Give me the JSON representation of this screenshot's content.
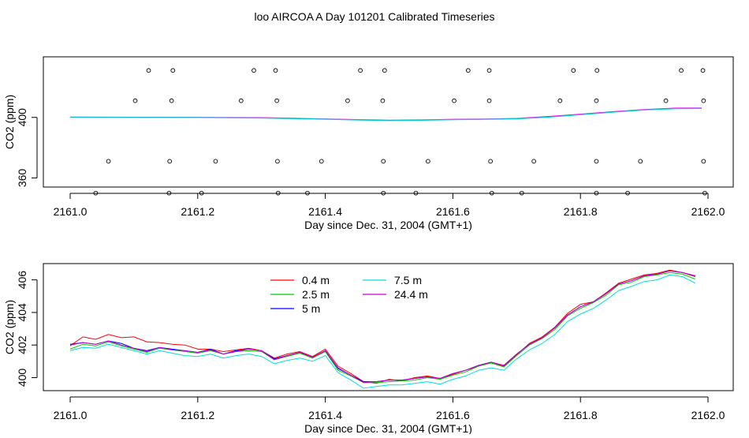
{
  "chart_data": [
    {
      "type": "scatter",
      "title": "loo AIRCOA A  Day 101201  Calibrated Timeseries",
      "xlabel": "Day since Dec. 31, 2004 (GMT+1)",
      "ylabel": "CO2 (ppm)",
      "xlim": [
        2161.0,
        2162.0
      ],
      "ylim": [
        354,
        440
      ],
      "x_ticks": [
        2161.0,
        2161.2,
        2161.4,
        2161.6,
        2161.8,
        2162.0
      ],
      "x_tick_labels": [
        "2161.0",
        "2161.2",
        "2161.4",
        "2161.6",
        "2161.8",
        "2162.0"
      ],
      "y_ticks": [
        360,
        400
      ],
      "y_tick_labels": [
        "360",
        "400"
      ],
      "grid": false,
      "points": [
        [
          2161.123,
          431
        ],
        [
          2161.161,
          431
        ],
        [
          2161.288,
          431
        ],
        [
          2161.322,
          431
        ],
        [
          2161.455,
          431
        ],
        [
          2161.493,
          431
        ],
        [
          2161.624,
          431
        ],
        [
          2161.657,
          431
        ],
        [
          2161.789,
          431
        ],
        [
          2161.826,
          431
        ],
        [
          2161.958,
          431
        ],
        [
          2161.992,
          431
        ],
        [
          2161.102,
          411
        ],
        [
          2161.159,
          411
        ],
        [
          2161.268,
          411
        ],
        [
          2161.324,
          411
        ],
        [
          2161.435,
          411
        ],
        [
          2161.49,
          411
        ],
        [
          2161.602,
          411
        ],
        [
          2161.657,
          411
        ],
        [
          2161.768,
          411
        ],
        [
          2161.825,
          411
        ],
        [
          2161.934,
          411
        ],
        [
          2161.993,
          411
        ],
        [
          2161.06,
          371
        ],
        [
          2161.156,
          371
        ],
        [
          2161.228,
          371
        ],
        [
          2161.325,
          371
        ],
        [
          2161.394,
          371
        ],
        [
          2161.491,
          371
        ],
        [
          2161.561,
          371
        ],
        [
          2161.659,
          371
        ],
        [
          2161.727,
          371
        ],
        [
          2161.825,
          371
        ],
        [
          2161.894,
          371
        ],
        [
          2161.993,
          371
        ],
        [
          2161.04,
          350
        ],
        [
          2161.155,
          350
        ],
        [
          2161.206,
          350
        ],
        [
          2161.326,
          350
        ],
        [
          2161.372,
          350
        ],
        [
          2161.491,
          350
        ],
        [
          2161.542,
          350
        ],
        [
          2161.661,
          350
        ],
        [
          2161.708,
          350
        ],
        [
          2161.825,
          350
        ],
        [
          2161.874,
          350
        ],
        [
          2161.995,
          350
        ]
      ],
      "series": [
        {
          "name": "",
          "color": "#FF00FF",
          "x": [
            2161.0,
            2161.1,
            2161.2,
            2161.3,
            2161.35,
            2161.4,
            2161.45,
            2161.5,
            2161.55,
            2161.6,
            2161.65,
            2161.7,
            2161.75,
            2161.8,
            2161.85,
            2161.9,
            2161.95,
            2161.99
          ],
          "y": [
            400.2,
            400.1,
            400.0,
            399.8,
            399.4,
            399.0,
            398.5,
            398.1,
            398.3,
            398.7,
            398.9,
            399.3,
            400.6,
            402.1,
            403.7,
            405.2,
            406.1,
            406.2
          ]
        },
        {
          "name": "",
          "color": "#00CCCC",
          "x": [
            2161.0,
            2161.1,
            2161.2,
            2161.3,
            2161.35,
            2161.4,
            2161.45,
            2161.5,
            2161.55,
            2161.6,
            2161.65,
            2161.7,
            2161.75,
            2161.8,
            2161.85,
            2161.9,
            2161.95,
            2161.99
          ],
          "y": [
            400.0,
            400.0,
            399.9,
            399.6,
            399.2,
            398.8,
            398.3,
            397.9,
            398.1,
            398.5,
            398.7,
            399.1,
            400.2,
            401.8,
            403.4,
            404.9,
            405.8,
            405.9
          ]
        }
      ]
    },
    {
      "type": "line",
      "xlabel": "Day since Dec. 31, 2004 (GMT+1)",
      "ylabel": "CO2 (ppm)",
      "xlim": [
        2161.0,
        2162.0
      ],
      "ylim": [
        399.2,
        407.0
      ],
      "x_ticks": [
        2161.0,
        2161.2,
        2161.4,
        2161.6,
        2161.8,
        2162.0
      ],
      "x_tick_labels": [
        "2161.0",
        "2161.2",
        "2161.4",
        "2161.6",
        "2161.8",
        "2162.0"
      ],
      "y_ticks": [
        400,
        402,
        404,
        406
      ],
      "y_tick_labels": [
        "400",
        "402",
        "404",
        "406"
      ],
      "grid": false,
      "legend": "top-center",
      "base": {
        "x": [
          2161.0,
          2161.02,
          2161.04,
          2161.06,
          2161.08,
          2161.1,
          2161.12,
          2161.14,
          2161.16,
          2161.18,
          2161.2,
          2161.22,
          2161.24,
          2161.26,
          2161.28,
          2161.3,
          2161.32,
          2161.34,
          2161.36,
          2161.38,
          2161.4,
          2161.42,
          2161.44,
          2161.46,
          2161.48,
          2161.5,
          2161.52,
          2161.54,
          2161.56,
          2161.58,
          2161.6,
          2161.62,
          2161.64,
          2161.66,
          2161.68,
          2161.7,
          2161.72,
          2161.74,
          2161.76,
          2161.78,
          2161.8,
          2161.82,
          2161.84,
          2161.86,
          2161.88,
          2161.9,
          2161.92,
          2161.94,
          2161.96,
          2161.98
        ],
        "y": [
          401.9,
          402.1,
          402.0,
          402.2,
          402.0,
          401.8,
          401.6,
          401.8,
          401.7,
          401.6,
          401.5,
          401.7,
          401.4,
          401.6,
          401.7,
          401.6,
          401.1,
          401.3,
          401.5,
          401.2,
          401.6,
          400.5,
          400.1,
          399.7,
          399.7,
          399.8,
          399.8,
          399.9,
          400.0,
          399.9,
          400.2,
          400.4,
          400.7,
          400.9,
          400.7,
          401.4,
          402.0,
          402.4,
          403.0,
          403.8,
          404.3,
          404.6,
          405.1,
          405.7,
          405.9,
          406.2,
          406.3,
          406.5,
          406.4,
          406.2
        ]
      },
      "series": [
        {
          "name": "0.4 m",
          "color": "#FF0000",
          "offsets": [
            0.05,
            0.4,
            0.35,
            0.45,
            0.45,
            0.7,
            0.6,
            0.35,
            0.35,
            0.4,
            0.25,
            0.05,
            0.2,
            0.1,
            0.1,
            0.05,
            0.1,
            0.15,
            0.1,
            0.1,
            0.15,
            0.2,
            0.15,
            0.05,
            -0.05,
            0.1,
            0.0,
            0.1,
            0.1,
            0.05,
            0.0,
            0.05,
            0.0,
            0.0,
            0.0,
            0.0,
            0.1,
            0.1,
            0.1,
            0.15,
            0.2,
            0.05,
            0.1,
            0.1,
            0.15,
            0.1,
            0.1,
            0.1,
            0.05,
            0.0
          ]
        },
        {
          "name": "2.5 m",
          "color": "#00CC00",
          "offsets": [
            -0.15,
            -0.05,
            -0.05,
            0.0,
            -0.05,
            -0.05,
            -0.05,
            0.0,
            0.0,
            0.0,
            0.0,
            -0.05,
            0.05,
            0.0,
            -0.05,
            0.0,
            0.0,
            0.0,
            0.0,
            0.0,
            0.0,
            -0.05,
            0.0,
            0.0,
            0.0,
            -0.05,
            0.0,
            -0.05,
            0.0,
            0.0,
            -0.05,
            -0.05,
            0.0,
            0.0,
            -0.05,
            -0.05,
            0.0,
            0.0,
            -0.05,
            0.0,
            -0.05,
            0.0,
            -0.05,
            0.0,
            -0.05,
            0.0,
            0.0,
            -0.05,
            -0.05,
            -0.15
          ]
        },
        {
          "name": "5 m",
          "color": "#0000FF",
          "offsets": [
            0.15,
            0.05,
            0.05,
            0.05,
            0.1,
            0.0,
            0.05,
            0.05,
            0.05,
            0.05,
            0.05,
            0.05,
            0.05,
            0.05,
            0.05,
            0.05,
            0.05,
            0.05,
            0.05,
            0.05,
            0.05,
            0.05,
            0.05,
            0.05,
            0.05,
            0.05,
            0.05,
            0.05,
            0.05,
            0.05,
            0.05,
            0.05,
            0.05,
            0.05,
            0.05,
            0.05,
            0.05,
            0.05,
            0.05,
            0.05,
            0.05,
            0.05,
            0.05,
            0.05,
            0.05,
            0.05,
            0.05,
            0.05,
            0.05,
            0.05
          ]
        },
        {
          "name": "7.5 m",
          "color": "#00DDDD",
          "offsets": [
            -0.25,
            -0.25,
            -0.2,
            -0.15,
            -0.15,
            -0.15,
            -0.15,
            -0.15,
            -0.2,
            -0.25,
            -0.2,
            -0.25,
            -0.2,
            -0.25,
            -0.25,
            -0.3,
            -0.25,
            -0.25,
            -0.3,
            -0.2,
            -0.25,
            -0.2,
            -0.25,
            -0.35,
            -0.25,
            -0.25,
            -0.25,
            -0.25,
            -0.25,
            -0.3,
            -0.3,
            -0.3,
            -0.25,
            -0.3,
            -0.25,
            -0.25,
            -0.3,
            -0.3,
            -0.35,
            -0.35,
            -0.4,
            -0.35,
            -0.35,
            -0.35,
            -0.3,
            -0.3,
            -0.3,
            -0.2,
            -0.2,
            -0.4
          ]
        },
        {
          "name": "24.4 m",
          "color": "#CC00CC",
          "offsets": [
            0.1,
            0.05,
            0.05,
            0.05,
            0.0,
            0.0,
            0.0,
            0.05,
            0.0,
            0.05,
            0.05,
            0.0,
            0.05,
            0.0,
            0.05,
            0.05,
            0.0,
            0.05,
            0.05,
            0.05,
            0.05,
            0.1,
            0.05,
            0.0,
            0.05,
            0.05,
            0.05,
            0.05,
            0.05,
            0.05,
            0.05,
            0.05,
            0.05,
            0.05,
            0.05,
            0.05,
            0.05,
            0.05,
            0.05,
            0.05,
            0.05,
            0.05,
            0.05,
            0.05,
            0.05,
            0.05,
            0.05,
            0.05,
            0.05,
            0.05
          ]
        }
      ]
    }
  ]
}
